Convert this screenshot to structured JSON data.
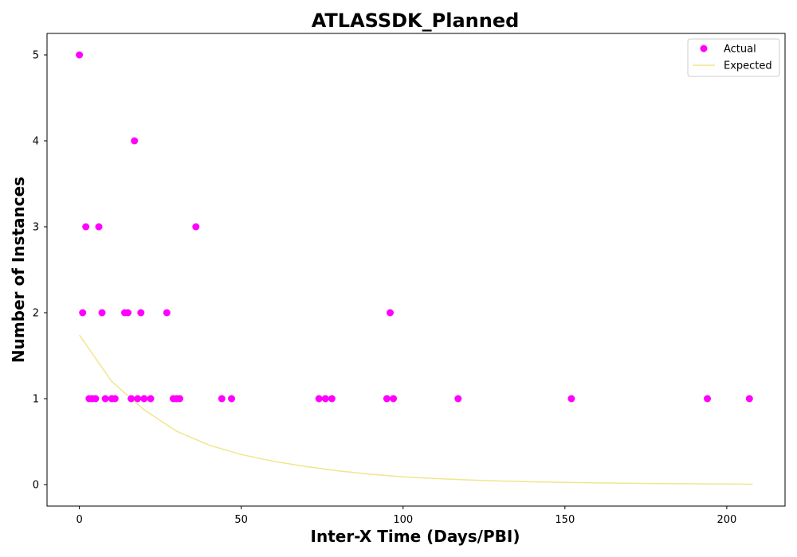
{
  "chart_data": {
    "type": "scatter",
    "title": "ATLASSDK_Planned",
    "xlabel": "Inter-X Time (Days/PBI)",
    "ylabel": "Number of Instances",
    "xlim": [
      -10,
      218
    ],
    "ylim": [
      -0.25,
      5.25
    ],
    "xticks": [
      0,
      50,
      100,
      150,
      200
    ],
    "yticks": [
      0,
      1,
      2,
      3,
      4,
      5
    ],
    "grid": false,
    "legend_position": "top-right",
    "series": [
      {
        "name": "Actual",
        "kind": "scatter",
        "color": "#ff00ff",
        "points": [
          [
            0,
            5
          ],
          [
            1,
            2
          ],
          [
            2,
            3
          ],
          [
            3,
            1
          ],
          [
            4,
            1
          ],
          [
            5,
            1
          ],
          [
            6,
            3
          ],
          [
            7,
            2
          ],
          [
            8,
            1
          ],
          [
            10,
            1
          ],
          [
            11,
            1
          ],
          [
            14,
            2
          ],
          [
            15,
            2
          ],
          [
            16,
            1
          ],
          [
            17,
            4
          ],
          [
            18,
            1
          ],
          [
            19,
            2
          ],
          [
            20,
            1
          ],
          [
            22,
            1
          ],
          [
            27,
            2
          ],
          [
            29,
            1
          ],
          [
            30,
            1
          ],
          [
            31,
            1
          ],
          [
            36,
            3
          ],
          [
            44,
            1
          ],
          [
            47,
            1
          ],
          [
            74,
            1
          ],
          [
            76,
            1
          ],
          [
            78,
            1
          ],
          [
            95,
            1
          ],
          [
            96,
            2
          ],
          [
            97,
            1
          ],
          [
            117,
            1
          ],
          [
            152,
            1
          ],
          [
            194,
            1
          ],
          [
            207,
            1
          ]
        ]
      },
      {
        "name": "Expected",
        "kind": "line",
        "color": "#f0e68c",
        "x": [
          0,
          10,
          20,
          30,
          40,
          50,
          60,
          70,
          80,
          90,
          100,
          110,
          120,
          130,
          140,
          150,
          160,
          170,
          180,
          190,
          200,
          208
        ],
        "y": [
          1.74,
          1.2,
          0.87,
          0.62,
          0.46,
          0.35,
          0.27,
          0.21,
          0.16,
          0.12,
          0.09,
          0.07,
          0.055,
          0.042,
          0.032,
          0.025,
          0.019,
          0.015,
          0.011,
          0.009,
          0.007,
          0.005
        ]
      }
    ]
  }
}
